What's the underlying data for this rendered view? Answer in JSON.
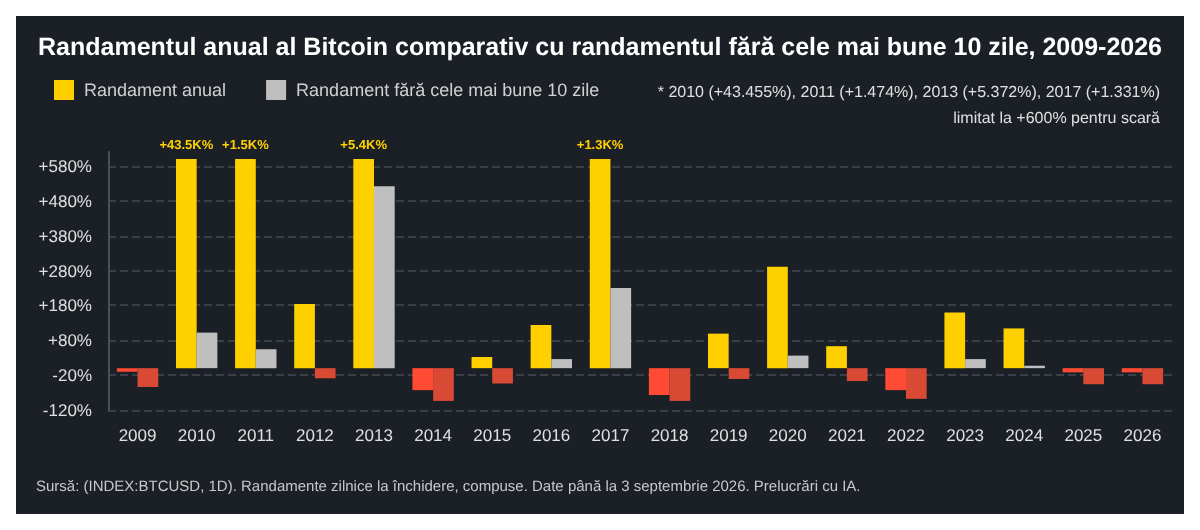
{
  "chart_data": {
    "type": "bar",
    "title": "Randamentul anual al Bitcoin comparativ cu randamentul fără cele mai bune 10 zile, 2009-2026",
    "categories": [
      "2009",
      "2010",
      "2011",
      "2012",
      "2013",
      "2014",
      "2015",
      "2016",
      "2017",
      "2018",
      "2019",
      "2020",
      "2021",
      "2022",
      "2023",
      "2024",
      "2025",
      "2026"
    ],
    "series": [
      {
        "name": "Randament anual",
        "color": "#ffd000",
        "colors": [
          "#ff4b33",
          "#ffd000",
          "#ffd000",
          "#ffd000",
          "#ffd000",
          "#ff4b33",
          "#ffd000",
          "#ffd000",
          "#ffd000",
          "#ff4b33",
          "#ffd000",
          "#ffd000",
          "#ffd000",
          "#ff4b33",
          "#ffd000",
          "#ffd000",
          "#ff4b33",
          "#ff4b33"
        ],
        "values": [
          -10,
          600,
          600,
          184,
          600,
          -63,
          32,
          124,
          600,
          -77,
          99,
          291,
          63,
          -63,
          160,
          114,
          -12,
          -12
        ]
      },
      {
        "name": "Randament fără cele mai bune 10 zile",
        "color": "#bfbfbf",
        "colors": [
          "#d94a35",
          "#bfbfbf",
          "#bfbfbf",
          "#d94a35",
          "#bfbfbf",
          "#d94a35",
          "#d94a35",
          "#bfbfbf",
          "#bfbfbf",
          "#d94a35",
          "#d94a35",
          "#bfbfbf",
          "#d94a35",
          "#d94a35",
          "#bfbfbf",
          "#bfbfbf",
          "#d94a35",
          "#d94a35"
        ],
        "values": [
          -54,
          102,
          54,
          -29,
          522,
          -94,
          -44,
          26,
          230,
          -94,
          -31,
          36,
          -37,
          -88,
          26,
          7,
          -46,
          -46
        ]
      }
    ],
    "ylim": [
      -120,
      620
    ],
    "yticks": [
      {
        "value": -120,
        "label": "-120%"
      },
      {
        "value": -20,
        "label": "-20%"
      },
      {
        "value": 80,
        "label": "+80%"
      },
      {
        "value": 180,
        "label": "+180%"
      },
      {
        "value": 280,
        "label": "+280%"
      },
      {
        "value": 380,
        "label": "+380%"
      },
      {
        "value": 480,
        "label": "+480%"
      },
      {
        "value": 580,
        "label": "+580%"
      }
    ],
    "grid": "y",
    "legend": "top left",
    "annotations": [
      {
        "text": "+43.5K%",
        "x": "2010",
        "y": 600
      },
      {
        "text": "+1.5K%",
        "x": "2011",
        "y": 600
      },
      {
        "text": "+5.4K%",
        "x": "2013",
        "y": 600
      },
      {
        "text": "+1.3K%",
        "x": "2017",
        "y": 600
      },
      "* 2010 (+43.455%), 2011 (+1.474%), 2013 (+5.372%), 2017 (+1.331%)",
      "limitat la +600% pentru scară",
      "Sursă: (INDEX:BTCUSD, 1D). Randamente zilnice la închidere, compuse. Date până la 3 septembrie 2026. Prelucrări cu IA."
    ]
  }
}
